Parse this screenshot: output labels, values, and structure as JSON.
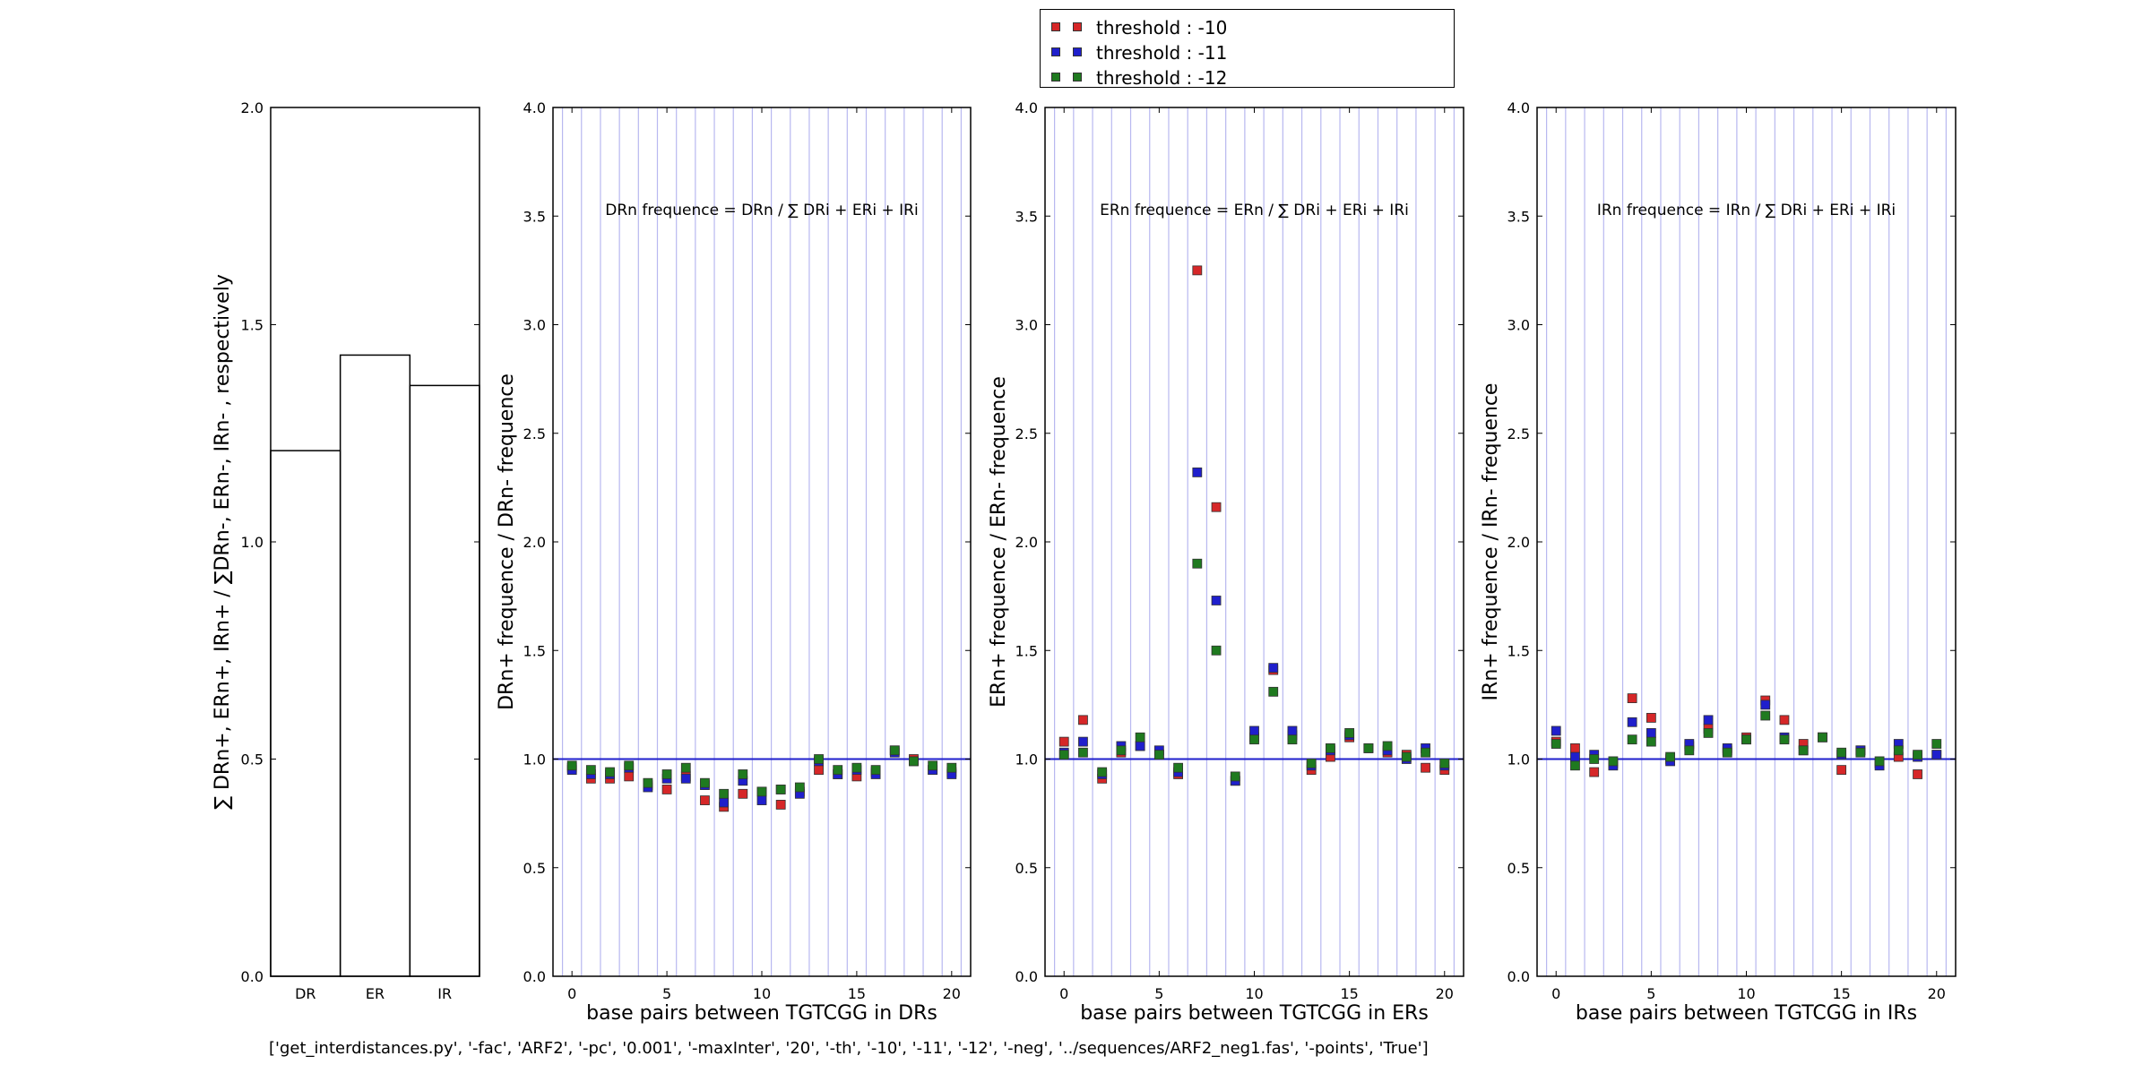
{
  "legend": {
    "entries": [
      {
        "label": "threshold : -10",
        "color": "#d62728"
      },
      {
        "label": "threshold : -11",
        "color": "#1f1fcc"
      },
      {
        "label": "threshold : -12",
        "color": "#1f7a1f"
      }
    ]
  },
  "footer": {
    "command": "['get_interdistances.py', '-fac', 'ARF2', '-pc', '0.001', '-maxInter', '20', '-th', '-10', '-11', '-12', '-neg', '../sequences/ARF2_neg1.fas', '-points', 'True']"
  },
  "chart_data": [
    {
      "type": "bar",
      "ylabel": "∑ DRn+, ERn+, IRn+ / ∑DRn-, ERn-, IRn- , respectively",
      "categories": [
        "DR",
        "ER",
        "IR"
      ],
      "values": [
        1.21,
        1.43,
        1.36
      ],
      "ylim": [
        0,
        2.0
      ],
      "yticks": [
        "0.0",
        "0.5",
        "1.0",
        "1.5",
        "2.0"
      ],
      "fill": "none"
    },
    {
      "type": "scatter",
      "annotation": "DRn frequence = DRn / ∑ DRi + ERi + IRi",
      "ylabel": "DRn+ frequence / DRn- frequence",
      "xlabel": "base pairs between TGTCGG in DRs",
      "xlim": [
        -1,
        21
      ],
      "ylim": [
        0,
        4.0
      ],
      "xticks": [
        "0",
        "5",
        "10",
        "15",
        "20"
      ],
      "yticks": [
        "0.0",
        "0.5",
        "1.0",
        "1.5",
        "2.0",
        "2.5",
        "3.0",
        "3.5",
        "4.0"
      ],
      "reference_line": 1.0,
      "vertical_grid": true,
      "x": [
        0,
        1,
        2,
        3,
        4,
        5,
        6,
        7,
        8,
        9,
        10,
        11,
        12,
        13,
        14,
        15,
        16,
        17,
        18,
        19,
        20
      ],
      "series": [
        {
          "name": "threshold : -10",
          "values": [
            0.96,
            0.91,
            0.91,
            0.92,
            0.88,
            0.86,
            0.92,
            0.81,
            0.78,
            0.84,
            0.85,
            0.79,
            0.85,
            0.95,
            0.93,
            0.92,
            0.94,
            1.04,
            1.0,
            0.95,
            0.94
          ]
        },
        {
          "name": "threshold : -11",
          "values": [
            0.95,
            0.93,
            0.93,
            0.96,
            0.87,
            0.91,
            0.91,
            0.88,
            0.8,
            0.9,
            0.81,
            0.86,
            0.84,
            0.99,
            0.93,
            0.95,
            0.93,
            1.03,
            0.99,
            0.95,
            0.93
          ]
        },
        {
          "name": "threshold : -12",
          "values": [
            0.97,
            0.95,
            0.94,
            0.97,
            0.89,
            0.93,
            0.96,
            0.89,
            0.84,
            0.93,
            0.85,
            0.86,
            0.87,
            1.0,
            0.95,
            0.96,
            0.95,
            1.04,
            0.99,
            0.97,
            0.96
          ]
        }
      ]
    },
    {
      "type": "scatter",
      "annotation": "ERn frequence = ERn / ∑ DRi + ERi + IRi",
      "ylabel": "ERn+ frequence / ERn- frequence",
      "xlabel": "base pairs between TGTCGG in ERs",
      "xlim": [
        -1,
        21
      ],
      "ylim": [
        0,
        4.0
      ],
      "xticks": [
        "0",
        "5",
        "10",
        "15",
        "20"
      ],
      "yticks": [
        "0.0",
        "0.5",
        "1.0",
        "1.5",
        "2.0",
        "2.5",
        "3.0",
        "3.5",
        "4.0"
      ],
      "reference_line": 1.0,
      "vertical_grid": true,
      "x": [
        0,
        1,
        2,
        3,
        4,
        5,
        6,
        7,
        8,
        9,
        10,
        11,
        12,
        13,
        14,
        15,
        16,
        17,
        18,
        19,
        20
      ],
      "series": [
        {
          "name": "threshold : -10",
          "values": [
            1.08,
            1.18,
            0.91,
            1.03,
            1.06,
            1.02,
            0.93,
            3.25,
            2.16,
            0.9,
            1.1,
            1.41,
            1.11,
            0.95,
            1.01,
            1.1,
            1.05,
            1.03,
            1.02,
            0.96,
            0.95
          ]
        },
        {
          "name": "threshold : -11",
          "values": [
            1.03,
            1.08,
            0.93,
            1.06,
            1.06,
            1.04,
            0.94,
            2.32,
            1.73,
            0.9,
            1.13,
            1.42,
            1.13,
            0.97,
            1.04,
            1.11,
            1.05,
            1.04,
            1.0,
            1.05,
            0.97
          ]
        },
        {
          "name": "threshold : -12",
          "values": [
            1.02,
            1.03,
            0.94,
            1.04,
            1.1,
            1.02,
            0.96,
            1.9,
            1.5,
            0.92,
            1.09,
            1.31,
            1.09,
            0.98,
            1.05,
            1.12,
            1.05,
            1.06,
            1.01,
            1.03,
            0.98
          ]
        }
      ]
    },
    {
      "type": "scatter",
      "annotation": "IRn frequence = IRn / ∑ DRi + ERi + IRi",
      "ylabel": "IRn+ frequence / IRn- frequence",
      "xlabel": "base pairs between TGTCGG in IRs",
      "xlim": [
        -1,
        21
      ],
      "ylim": [
        0,
        4.0
      ],
      "xticks": [
        "0",
        "5",
        "10",
        "15",
        "20"
      ],
      "yticks": [
        "0.0",
        "0.5",
        "1.0",
        "1.5",
        "2.0",
        "2.5",
        "3.0",
        "3.5",
        "4.0"
      ],
      "reference_line": 1.0,
      "vertical_grid": true,
      "x": [
        0,
        1,
        2,
        3,
        4,
        5,
        6,
        7,
        8,
        9,
        10,
        11,
        12,
        13,
        14,
        15,
        16,
        17,
        18,
        19,
        20
      ],
      "series": [
        {
          "name": "threshold : -10",
          "values": [
            1.08,
            1.05,
            0.94,
            0.98,
            1.28,
            1.19,
            1.0,
            1.06,
            1.14,
            1.04,
            1.1,
            1.27,
            1.18,
            1.07,
            1.1,
            0.95,
            1.04,
            0.98,
            1.01,
            0.93,
            1.02
          ]
        },
        {
          "name": "threshold : -11",
          "values": [
            1.13,
            1.01,
            1.02,
            0.97,
            1.17,
            1.12,
            0.99,
            1.07,
            1.18,
            1.05,
            1.09,
            1.25,
            1.1,
            1.04,
            1.1,
            1.02,
            1.04,
            0.97,
            1.07,
            1.01,
            1.02
          ]
        },
        {
          "name": "threshold : -12",
          "values": [
            1.07,
            0.97,
            1.0,
            0.99,
            1.09,
            1.08,
            1.01,
            1.04,
            1.12,
            1.03,
            1.09,
            1.2,
            1.09,
            1.04,
            1.1,
            1.03,
            1.03,
            0.99,
            1.04,
            1.02,
            1.07
          ]
        }
      ]
    }
  ]
}
